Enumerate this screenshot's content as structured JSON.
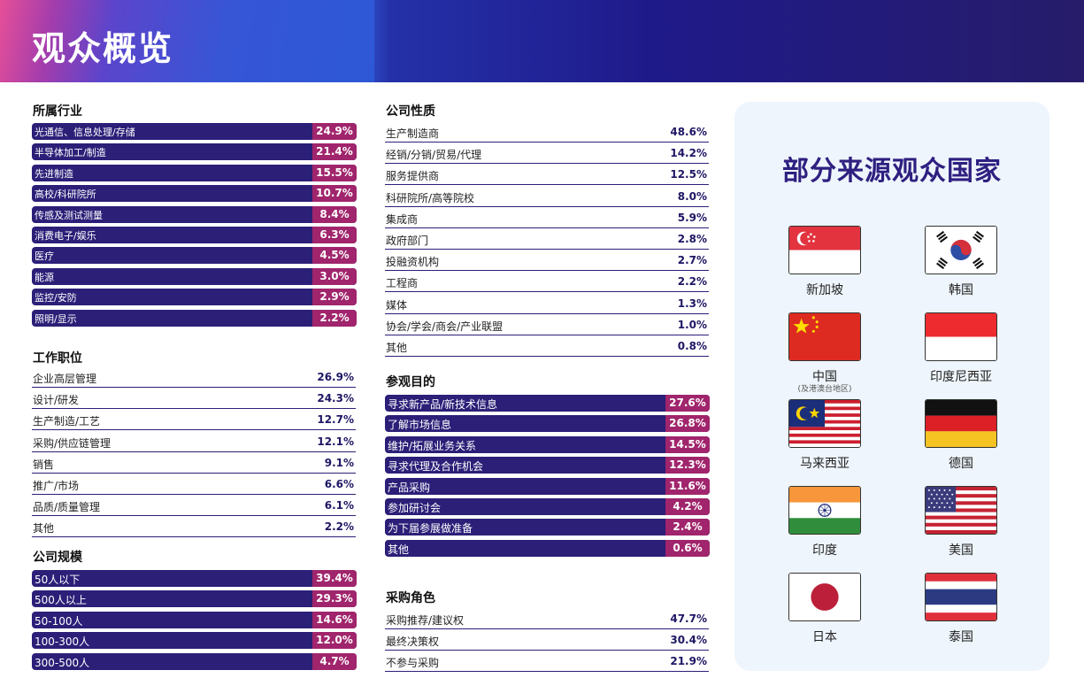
{
  "header": {
    "title": "观众概览"
  },
  "industry": {
    "title": "所属行业",
    "rows": [
      {
        "label": "光通信、信息处理/存储",
        "value": "24.9%"
      },
      {
        "label": "半导体加工/制造",
        "value": "21.4%"
      },
      {
        "label": "先进制造",
        "value": "15.5%"
      },
      {
        "label": "高校/科研院所",
        "value": "10.7%"
      },
      {
        "label": "传感及测试测量",
        "value": "8.4%"
      },
      {
        "label": "消费电子/娱乐",
        "value": "6.3%"
      },
      {
        "label": "医疗",
        "value": "4.5%"
      },
      {
        "label": "能源",
        "value": "3.0%"
      },
      {
        "label": "监控/安防",
        "value": "2.9%"
      },
      {
        "label": "照明/显示",
        "value": "2.2%"
      }
    ]
  },
  "position": {
    "title": "工作职位",
    "rows": [
      {
        "label": "企业高层管理",
        "value": "26.9%"
      },
      {
        "label": "设计/研发",
        "value": "24.3%"
      },
      {
        "label": "生产制造/工艺",
        "value": "12.7%"
      },
      {
        "label": "采购/供应链管理",
        "value": "12.1%"
      },
      {
        "label": "销售",
        "value": "9.1%"
      },
      {
        "label": "推广/市场",
        "value": "6.6%"
      },
      {
        "label": "品质/质量管理",
        "value": "6.1%"
      },
      {
        "label": "其他",
        "value": "2.2%"
      }
    ]
  },
  "size": {
    "title": "公司规模",
    "rows": [
      {
        "label": "50人以下",
        "value": "39.4%"
      },
      {
        "label": "500人以上",
        "value": "29.3%"
      },
      {
        "label": "50-100人",
        "value": "14.6%"
      },
      {
        "label": "100-300人",
        "value": "12.0%"
      },
      {
        "label": "300-500人",
        "value": "4.7%"
      }
    ]
  },
  "nature": {
    "title": "公司性质",
    "rows": [
      {
        "label": "生产制造商",
        "value": "48.6%"
      },
      {
        "label": "经销/分销/贸易/代理",
        "value": "14.2%"
      },
      {
        "label": "服务提供商",
        "value": "12.5%"
      },
      {
        "label": "科研院所/高等院校",
        "value": "8.0%"
      },
      {
        "label": "集成商",
        "value": "5.9%"
      },
      {
        "label": "政府部门",
        "value": "2.8%"
      },
      {
        "label": "投融资机构",
        "value": "2.7%"
      },
      {
        "label": "工程商",
        "value": "2.2%"
      },
      {
        "label": "媒体",
        "value": "1.3%"
      },
      {
        "label": "协会/学会/商会/产业联盟",
        "value": "1.0%"
      },
      {
        "label": "其他",
        "value": "0.8%"
      }
    ]
  },
  "purpose": {
    "title": "参观目的",
    "rows": [
      {
        "label": "寻求新产品/新技术信息",
        "value": "27.6%"
      },
      {
        "label": "了解市场信息",
        "value": "26.8%"
      },
      {
        "label": "维护/拓展业务关系",
        "value": "14.5%"
      },
      {
        "label": "寻求代理及合作机会",
        "value": "12.3%"
      },
      {
        "label": "产品采购",
        "value": "11.6%"
      },
      {
        "label": "参加研讨会",
        "value": "4.2%"
      },
      {
        "label": "为下届参展做准备",
        "value": "2.4%"
      },
      {
        "label": "其他",
        "value": "0.6%"
      }
    ]
  },
  "purchase": {
    "title": "采购角色",
    "rows": [
      {
        "label": "采购推荐/建议权",
        "value": "47.7%"
      },
      {
        "label": "最终决策权",
        "value": "30.4%"
      },
      {
        "label": "不参与采购",
        "value": "21.9%"
      }
    ]
  },
  "countries": {
    "title": "部分来源观众国家",
    "items": [
      {
        "name": "新加坡",
        "icon": "singapore-flag-icon"
      },
      {
        "name": "韩国",
        "icon": "korea-flag-icon"
      },
      {
        "name": "中国",
        "sub": "(及港澳台地区)",
        "icon": "china-flag-icon"
      },
      {
        "name": "印度尼西亚",
        "icon": "indonesia-flag-icon"
      },
      {
        "name": "马来西亚",
        "icon": "malaysia-flag-icon"
      },
      {
        "name": "德国",
        "icon": "germany-flag-icon"
      },
      {
        "name": "印度",
        "icon": "india-flag-icon"
      },
      {
        "name": "美国",
        "icon": "usa-flag-icon"
      },
      {
        "name": "日本",
        "icon": "japan-flag-icon"
      },
      {
        "name": "泰国",
        "icon": "thailand-flag-icon"
      }
    ]
  },
  "colors": {
    "bar": "#2b1f78",
    "value_box": "#a0256c",
    "title_accent": "#2e1f80"
  }
}
